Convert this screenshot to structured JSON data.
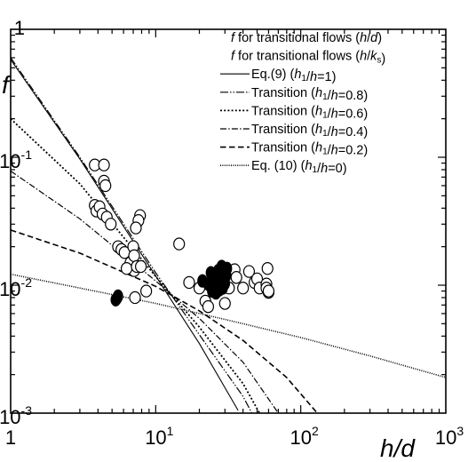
{
  "chart_data": {
    "type": "scatter",
    "xscale": "log",
    "yscale": "log",
    "xlim": [
      1,
      1000
    ],
    "ylim": [
      0.001,
      1
    ],
    "xlabel": "h/d",
    "ylabel": "f",
    "x_ticks": [
      {
        "value": 1,
        "base": "1",
        "exp": ""
      },
      {
        "value": 10,
        "base": "10",
        "exp": "1"
      },
      {
        "value": 100,
        "base": "10",
        "exp": "2"
      },
      {
        "value": 1000,
        "base": "10",
        "exp": "3"
      }
    ],
    "y_ticks": [
      {
        "value": 0.001,
        "base": "10",
        "exp": "-3"
      },
      {
        "value": 0.01,
        "base": "10",
        "exp": "-2"
      },
      {
        "value": 0.1,
        "base": "10",
        "exp": "-1"
      },
      {
        "value": 1,
        "base": "1",
        "exp": ""
      }
    ],
    "legend": [
      {
        "marker": "open-circle",
        "text": "f for transitional flows (h/d)"
      },
      {
        "marker": "filled-circle",
        "text": "f for transitional flows (h/ks)"
      },
      {
        "style": "solid",
        "text": "Eq.(9) (h1/h=1)"
      },
      {
        "style": "dashdotdot",
        "text": "Transition (h1/h=0.8)"
      },
      {
        "style": "dotted",
        "text": "Transition (h1/h=0.6)"
      },
      {
        "style": "dashdot",
        "text": "Transition (h1/h=0.4)"
      },
      {
        "style": "dashed",
        "text": "Transition (h1/h=0.2)"
      },
      {
        "style": "fine-dotted",
        "text": "Eq. (10) (h1/h=0)"
      }
    ],
    "series": [
      {
        "name": "Eq.(9) (h1/h=1)",
        "style": "solid",
        "x": [
          1,
          3,
          10,
          20,
          37
        ],
        "y": [
          0.58,
          0.097,
          0.0118,
          0.0035,
          0.00105
        ]
      },
      {
        "name": "Transition (h1/h=0.8)",
        "style": "dashdotdot",
        "x": [
          1,
          3,
          10,
          20,
          40,
          46
        ],
        "y": [
          0.6,
          0.1,
          0.0125,
          0.0041,
          0.00135,
          0.001
        ]
      },
      {
        "name": "Transition (h1/h=0.6)",
        "style": "dotted",
        "x": [
          1,
          3,
          10,
          20,
          40,
          52
        ],
        "y": [
          0.2,
          0.062,
          0.0117,
          0.0047,
          0.0017,
          0.001
        ]
      },
      {
        "name": "Transition (h1/h=0.4)",
        "style": "dashdot",
        "x": [
          1,
          3,
          10,
          20,
          40,
          70
        ],
        "y": [
          0.078,
          0.033,
          0.0108,
          0.0055,
          0.0025,
          0.001
        ]
      },
      {
        "name": "Transition (h1/h=0.2)",
        "style": "dashed",
        "x": [
          1,
          3,
          10,
          20,
          40,
          80,
          130
        ],
        "y": [
          0.027,
          0.0178,
          0.0098,
          0.0063,
          0.0037,
          0.0019,
          0.001
        ]
      },
      {
        "name": "Eq. (10) (h1/h=0)",
        "style": "fine-dotted",
        "x": [
          1,
          3,
          10,
          30,
          100,
          300,
          1000
        ],
        "y": [
          0.0122,
          0.0095,
          0.0072,
          0.0054,
          0.0039,
          0.0028,
          0.0019
        ]
      }
    ],
    "scatter": [
      {
        "name": "f for transitional flows (h/d)",
        "marker": "open-circle",
        "points": [
          [
            3.8,
            0.087
          ],
          [
            4.4,
            0.087
          ],
          [
            4.4,
            0.065
          ],
          [
            4.5,
            0.06
          ],
          [
            3.8,
            0.042
          ],
          [
            3.9,
            0.038
          ],
          [
            4.1,
            0.041
          ],
          [
            4.3,
            0.036
          ],
          [
            4.6,
            0.034
          ],
          [
            4.9,
            0.03
          ],
          [
            5.5,
            0.02
          ],
          [
            5.8,
            0.019
          ],
          [
            6.1,
            0.018
          ],
          [
            6.7,
            0.015
          ],
          [
            7.0,
            0.02
          ],
          [
            7.1,
            0.017
          ],
          [
            7.1,
            0.013
          ],
          [
            6.3,
            0.0135
          ],
          [
            7.4,
            0.014
          ],
          [
            7.9,
            0.014
          ],
          [
            7.8,
            0.035
          ],
          [
            7.6,
            0.032
          ],
          [
            7.3,
            0.028
          ],
          [
            8.6,
            0.009
          ],
          [
            7.2,
            0.008
          ],
          [
            14.5,
            0.021
          ],
          [
            17.0,
            0.0105
          ],
          [
            20,
            0.0095
          ],
          [
            22,
            0.0075
          ],
          [
            23,
            0.0068
          ],
          [
            30,
            0.0072
          ],
          [
            35,
            0.0132
          ],
          [
            36,
            0.0115
          ],
          [
            40,
            0.0095
          ],
          [
            44,
            0.0128
          ],
          [
            48,
            0.0105
          ],
          [
            50,
            0.0112
          ],
          [
            52,
            0.0095
          ],
          [
            58,
            0.0102
          ],
          [
            58,
            0.0095
          ],
          [
            59,
            0.0135
          ],
          [
            60,
            0.0088
          ],
          [
            60,
            0.009
          ],
          [
            32,
            0.0095
          ],
          [
            28,
            0.0098
          ]
        ]
      },
      {
        "name": "f for transitional flows (h/ks)",
        "marker": "filled-circle",
        "points": [
          [
            5.5,
            0.0082
          ],
          [
            5.3,
            0.0077
          ],
          [
            5.4,
            0.0079
          ],
          [
            21,
            0.0108
          ],
          [
            23,
            0.0102
          ],
          [
            24,
            0.0125
          ],
          [
            25,
            0.0116
          ],
          [
            25.5,
            0.0098
          ],
          [
            26,
            0.0112
          ],
          [
            26.5,
            0.0105
          ],
          [
            27,
            0.013
          ],
          [
            27.5,
            0.0092
          ],
          [
            28,
            0.011
          ],
          [
            28.5,
            0.014
          ],
          [
            29,
            0.0095
          ],
          [
            29.5,
            0.0122
          ],
          [
            30,
            0.0103
          ],
          [
            30.5,
            0.0118
          ],
          [
            31,
            0.0135
          ],
          [
            26,
            0.0087
          ],
          [
            24.5,
            0.009
          ]
        ]
      }
    ]
  }
}
